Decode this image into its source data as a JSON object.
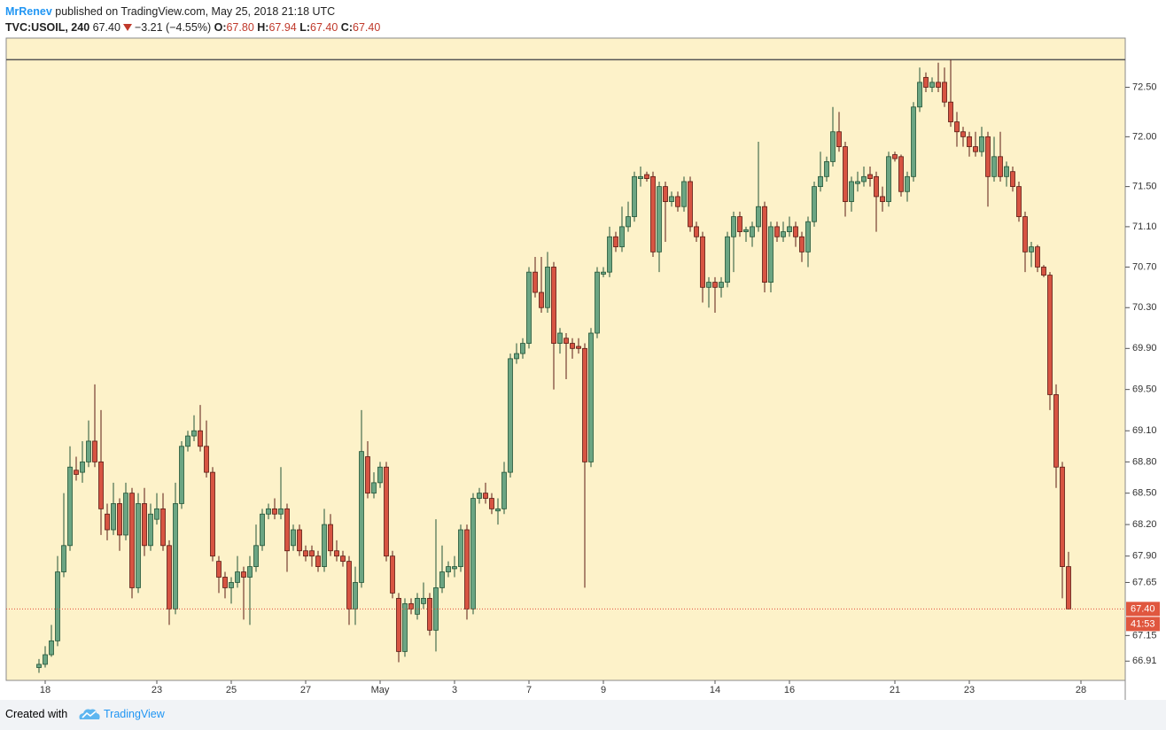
{
  "header": {
    "author": "MrRenev",
    "published": "published on TradingView.com, May 25, 2018 21:18 UTC",
    "symbol": "TVC:USOIL, 240",
    "last": "67.40",
    "change": "−3.21 (−4.55%)",
    "ohlc": [
      {
        "label": "O:",
        "value": "67.80"
      },
      {
        "label": "H:",
        "value": "67.94"
      },
      {
        "label": "L:",
        "value": "67.40"
      },
      {
        "label": "C:",
        "value": "67.40"
      }
    ]
  },
  "footer": {
    "created_with": "Created with",
    "brand": "TradingView"
  },
  "chart_data": {
    "type": "candlestick",
    "log": true,
    "grid": false,
    "up_color": "#6ba583",
    "down_color": "#d75442",
    "up_border": "#225437",
    "down_border": "#5b1a13",
    "ylim": [
      66.73,
      73.0
    ],
    "yticks": [
      {
        "value": 72.5,
        "label": "72.50"
      },
      {
        "value": 72.0,
        "label": "72.00"
      },
      {
        "value": 71.5,
        "label": "71.50"
      },
      {
        "value": 71.1,
        "label": "71.10"
      },
      {
        "value": 70.7,
        "label": "70.70"
      },
      {
        "value": 70.3,
        "label": "70.30"
      },
      {
        "value": 69.9,
        "label": "69.90"
      },
      {
        "value": 69.5,
        "label": "69.50"
      },
      {
        "value": 69.1,
        "label": "69.10"
      },
      {
        "value": 68.8,
        "label": "68.80"
      },
      {
        "value": 68.5,
        "label": "68.50"
      },
      {
        "value": 68.2,
        "label": "68.20"
      },
      {
        "value": 67.9,
        "label": "67.90"
      },
      {
        "value": 67.65,
        "label": "67.65"
      },
      {
        "value": 67.15,
        "label": "67.15"
      },
      {
        "value": 66.91,
        "label": "66.91"
      }
    ],
    "hline": 72.78,
    "last_label": "67.40",
    "countdown": "41:53",
    "categories": [
      null,
      "18",
      null,
      null,
      null,
      null,
      null,
      null,
      null,
      null,
      null,
      null,
      null,
      null,
      null,
      null,
      null,
      null,
      null,
      "23",
      null,
      null,
      null,
      null,
      null,
      null,
      null,
      null,
      null,
      null,
      null,
      "25",
      null,
      null,
      null,
      null,
      null,
      null,
      null,
      null,
      null,
      null,
      null,
      "27",
      null,
      null,
      null,
      null,
      null,
      null,
      null,
      null,
      null,
      null,
      null,
      "May",
      null,
      null,
      null,
      null,
      null,
      null,
      null,
      null,
      null,
      null,
      null,
      "3",
      null,
      null,
      null,
      null,
      null,
      null,
      null,
      null,
      null,
      null,
      null,
      "7",
      null,
      null,
      null,
      null,
      null,
      null,
      null,
      null,
      null,
      null,
      null,
      "9",
      null,
      null,
      null,
      null,
      null,
      null,
      null,
      null,
      null,
      null,
      null,
      null,
      null,
      null,
      null,
      null,
      null,
      "14",
      null,
      null,
      null,
      null,
      null,
      null,
      null,
      null,
      null,
      null,
      null,
      "16",
      null,
      null,
      null,
      null,
      null,
      null,
      null,
      null,
      null,
      null,
      null,
      null,
      null,
      null,
      null,
      null,
      "21",
      null,
      null,
      null,
      null,
      null,
      null,
      null,
      null,
      null,
      null,
      null,
      "23",
      null,
      null,
      null,
      null,
      null,
      null,
      null,
      null,
      null,
      null,
      null,
      null,
      null,
      null,
      null,
      null,
      null,
      "28"
    ],
    "open": [
      66.85,
      66.88,
      66.97,
      67.1,
      67.75,
      68.0,
      68.72,
      68.7,
      68.8,
      69.0,
      68.8,
      68.3,
      68.15,
      68.4,
      68.1,
      68.5,
      67.6,
      68.4,
      68.0,
      68.25,
      68.35,
      68.0,
      67.4,
      68.4,
      68.95,
      69.05,
      69.1,
      68.95,
      68.7,
      67.85,
      67.7,
      67.6,
      67.65,
      67.75,
      67.7,
      67.8,
      68.0,
      68.3,
      68.35,
      68.3,
      68.35,
      68.0,
      68.15,
      67.95,
      67.95,
      67.9,
      67.8,
      68.2,
      67.95,
      67.9,
      67.85,
      67.4,
      67.65,
      68.85,
      68.5,
      68.6,
      68.75,
      67.9,
      67.5,
      67.0,
      67.45,
      67.35,
      67.45,
      67.5,
      67.2,
      67.6,
      67.75,
      67.78,
      67.8,
      68.15,
      67.4,
      68.45,
      68.5,
      68.45,
      68.33,
      68.35,
      68.7,
      69.8,
      69.85,
      69.95,
      70.65,
      70.45,
      70.3,
      70.7,
      69.95,
      70.0,
      69.95,
      69.92,
      69.9,
      68.8,
      70.05,
      70.63,
      70.65,
      71.0,
      70.9,
      71.1,
      71.2,
      71.58,
      71.62,
      71.6,
      70.85,
      71.5,
      71.35,
      71.4,
      71.3,
      71.55,
      71.1,
      71.0,
      70.5,
      70.55,
      70.5,
      70.55,
      71.0,
      71.2,
      71.05,
      71.0,
      71.1,
      71.3,
      70.55,
      71.1,
      71.0,
      71.05,
      71.1,
      71.0,
      70.85,
      71.15,
      71.5,
      71.6,
      71.75,
      72.05,
      71.9,
      71.35,
      71.53,
      71.55,
      71.62,
      71.6,
      71.4,
      71.35,
      71.82,
      71.8,
      71.45,
      71.6,
      72.3,
      72.6,
      72.5,
      72.55,
      72.55,
      72.35,
      72.15,
      72.05,
      72.0,
      71.9,
      71.85,
      72.0,
      71.6,
      71.8,
      71.6,
      71.65,
      71.5,
      71.2,
      70.85,
      70.9,
      70.7,
      70.62,
      69.45,
      68.75,
      67.8,
      null,
      null
    ],
    "high": [
      66.93,
      67.05,
      67.25,
      67.9,
      68.5,
      68.95,
      68.85,
      69.0,
      69.2,
      69.55,
      69.3,
      68.4,
      68.6,
      68.45,
      68.6,
      68.55,
      68.5,
      68.55,
      68.4,
      68.5,
      68.5,
      68.05,
      68.6,
      69.0,
      69.1,
      69.25,
      69.35,
      69.2,
      68.75,
      67.9,
      67.75,
      67.7,
      67.9,
      67.8,
      67.9,
      68.2,
      68.35,
      68.4,
      68.45,
      68.75,
      68.4,
      68.2,
      68.2,
      68.0,
      68.0,
      67.95,
      68.35,
      68.3,
      68.05,
      67.95,
      67.9,
      67.8,
      69.3,
      69.0,
      68.7,
      68.8,
      68.8,
      67.95,
      67.55,
      67.5,
      67.5,
      67.55,
      67.65,
      67.55,
      68.25,
      68.0,
      67.85,
      67.9,
      68.2,
      68.2,
      68.5,
      68.55,
      68.6,
      68.5,
      68.45,
      68.8,
      69.85,
      69.95,
      70.0,
      70.7,
      70.8,
      70.8,
      70.85,
      70.75,
      70.1,
      70.05,
      70.0,
      70.0,
      69.95,
      70.1,
      70.7,
      70.7,
      71.1,
      71.05,
      71.3,
      71.35,
      71.65,
      71.7,
      71.65,
      71.65,
      71.55,
      71.55,
      71.45,
      71.45,
      71.6,
      71.6,
      71.15,
      71.05,
      70.6,
      70.6,
      70.6,
      71.05,
      71.25,
      71.25,
      71.1,
      71.15,
      71.95,
      71.35,
      71.15,
      71.15,
      71.15,
      71.2,
      71.15,
      71.05,
      71.2,
      71.55,
      71.85,
      71.8,
      72.3,
      72.25,
      71.95,
      71.6,
      71.65,
      71.7,
      71.7,
      71.65,
      71.5,
      71.85,
      71.85,
      71.82,
      71.65,
      72.35,
      72.7,
      72.65,
      72.6,
      72.75,
      72.7,
      72.78,
      72.25,
      72.1,
      72.05,
      72.05,
      72.1,
      72.05,
      72.0,
      72.05,
      71.75,
      71.7,
      71.55,
      71.25,
      70.95,
      70.92,
      70.72,
      70.65,
      69.55,
      68.8,
      67.94,
      null,
      null
    ],
    "low": [
      66.8,
      66.85,
      66.95,
      67.05,
      67.7,
      67.95,
      68.62,
      68.6,
      68.75,
      68.75,
      68.1,
      68.05,
      68.1,
      67.95,
      68.05,
      67.5,
      67.55,
      67.9,
      67.95,
      68.2,
      67.95,
      67.25,
      67.35,
      68.35,
      68.9,
      69.0,
      68.9,
      68.65,
      67.85,
      67.55,
      67.5,
      67.45,
      67.6,
      67.3,
      67.25,
      67.75,
      67.95,
      68.25,
      68.25,
      68.25,
      67.75,
      67.95,
      67.9,
      67.85,
      67.8,
      67.75,
      67.75,
      67.9,
      67.85,
      67.8,
      67.25,
      67.25,
      67.6,
      68.45,
      68.45,
      68.55,
      67.85,
      67.5,
      66.9,
      66.95,
      67.35,
      67.3,
      67.4,
      67.15,
      67.0,
      67.55,
      67.7,
      67.7,
      67.75,
      67.3,
      67.35,
      68.4,
      68.4,
      68.3,
      68.2,
      68.3,
      68.65,
      69.75,
      69.8,
      69.9,
      70.4,
      70.25,
      70.25,
      69.5,
      69.85,
      69.6,
      69.8,
      69.85,
      67.6,
      68.75,
      70.0,
      70.6,
      70.6,
      70.85,
      70.85,
      71.05,
      71.15,
      71.5,
      71.55,
      70.8,
      70.65,
      70.95,
      71.3,
      71.25,
      71.25,
      71.05,
      70.95,
      70.35,
      70.3,
      70.25,
      70.4,
      70.5,
      70.65,
      71.0,
      70.95,
      70.9,
      71.05,
      70.45,
      70.45,
      70.95,
      70.95,
      71.0,
      70.9,
      70.75,
      70.7,
      71.1,
      71.45,
      71.55,
      71.7,
      71.85,
      71.2,
      71.25,
      71.45,
      71.5,
      71.5,
      71.05,
      71.25,
      71.3,
      71.75,
      71.4,
      71.35,
      71.55,
      72.25,
      72.45,
      72.45,
      72.45,
      72.3,
      72.1,
      71.9,
      71.9,
      71.8,
      71.8,
      71.8,
      71.3,
      71.55,
      71.55,
      71.5,
      71.45,
      71.15,
      70.65,
      70.7,
      70.65,
      70.6,
      69.3,
      68.55,
      67.5,
      67.4,
      null,
      null
    ],
    "close": [
      66.88,
      66.97,
      67.1,
      67.75,
      68.0,
      68.75,
      68.68,
      68.8,
      69.0,
      68.8,
      68.35,
      68.15,
      68.4,
      68.1,
      68.5,
      67.6,
      68.4,
      68.0,
      68.3,
      68.35,
      68.0,
      67.4,
      68.4,
      68.95,
      69.05,
      69.1,
      68.95,
      68.7,
      67.9,
      67.7,
      67.6,
      67.65,
      67.75,
      67.7,
      67.8,
      68.0,
      68.3,
      68.35,
      68.3,
      68.35,
      67.95,
      68.15,
      67.95,
      67.9,
      67.9,
      67.8,
      68.2,
      67.95,
      67.9,
      67.85,
      67.4,
      67.65,
      68.9,
      68.5,
      68.6,
      68.75,
      67.9,
      67.55,
      67.0,
      67.45,
      67.4,
      67.5,
      67.5,
      67.2,
      67.6,
      67.75,
      67.8,
      67.8,
      68.15,
      67.4,
      68.45,
      68.5,
      68.45,
      68.35,
      68.35,
      68.7,
      69.8,
      69.85,
      69.95,
      70.65,
      70.45,
      70.3,
      70.7,
      69.95,
      70.05,
      69.95,
      69.9,
      69.9,
      68.8,
      70.05,
      70.65,
      70.65,
      71.0,
      70.9,
      71.1,
      71.2,
      71.6,
      71.6,
      71.58,
      70.85,
      71.5,
      71.35,
      71.4,
      71.3,
      71.55,
      71.1,
      71.0,
      70.5,
      70.55,
      70.5,
      70.55,
      71.0,
      71.2,
      71.05,
      71.07,
      71.1,
      71.3,
      70.55,
      71.1,
      71.0,
      71.05,
      71.1,
      71.0,
      70.85,
      71.15,
      71.5,
      71.6,
      71.75,
      72.05,
      71.9,
      71.35,
      71.55,
      71.55,
      71.6,
      71.58,
      71.4,
      71.35,
      71.8,
      71.78,
      71.45,
      71.6,
      72.3,
      72.55,
      72.5,
      72.55,
      72.5,
      72.35,
      72.15,
      72.05,
      72.0,
      71.9,
      71.85,
      72.0,
      71.6,
      71.8,
      71.6,
      71.7,
      71.5,
      71.2,
      70.85,
      70.9,
      70.7,
      70.62,
      69.45,
      68.75,
      67.8,
      67.4,
      null,
      null
    ]
  }
}
